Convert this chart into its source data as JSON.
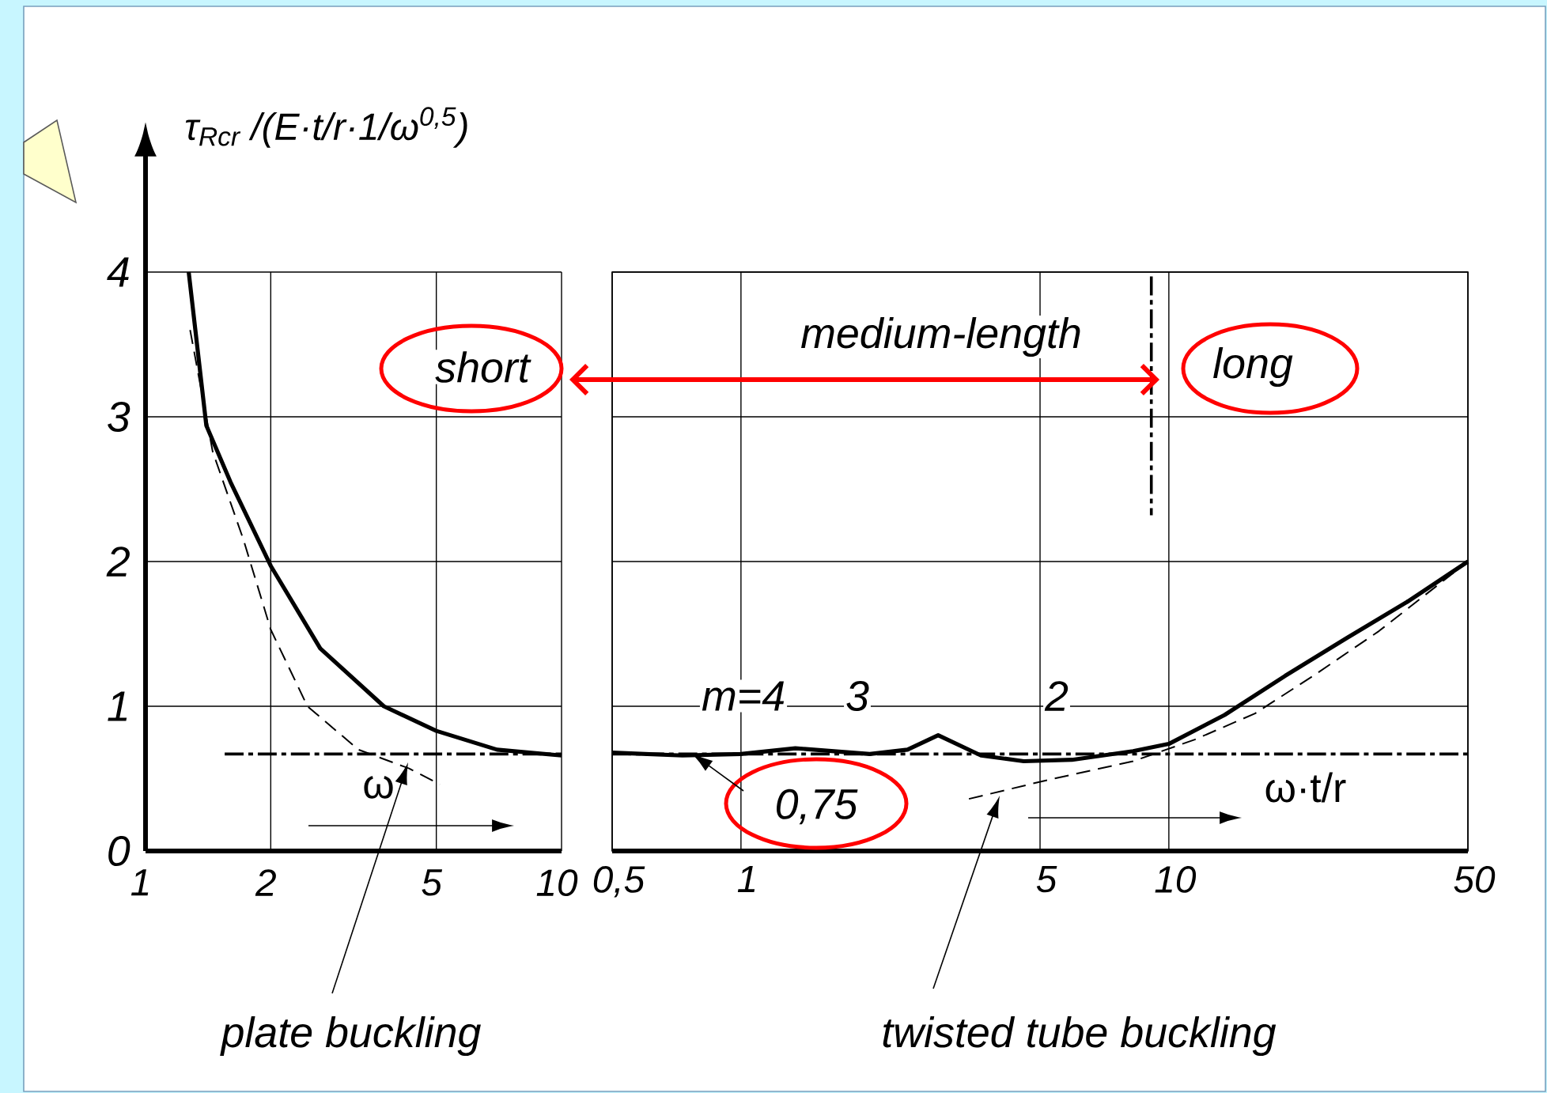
{
  "chart_data": [
    {
      "type": "line",
      "ylabel": "τ$_{Rcr}$ /(E·t/r·1/ω$^{0,5}$)",
      "xlabel": "ω",
      "log": "x",
      "xlim": [
        1,
        10
      ],
      "ylim": [
        0,
        4
      ],
      "xticks": [
        1,
        2,
        5,
        10
      ],
      "yticks": [
        0,
        1,
        2,
        3,
        4
      ],
      "grid": true,
      "annotations": [
        "short",
        "plate buckling"
      ],
      "series": [
        {
          "color": "#000000",
          "line_style": "solid",
          "x": [
            1.27,
            1.4,
            1.6,
            2,
            2.63,
            3.74,
            5,
            7,
            10
          ],
          "values": [
            4.0,
            2.94,
            2.55,
            1.97,
            1.4,
            1.0,
            0.83,
            0.7,
            0.66
          ]
        },
        {
          "color": "#000000",
          "line_style": "dashed",
          "x": [
            1.28,
            1.45,
            1.72,
            2,
            2.45,
            3.25,
            4.3,
            5.1
          ],
          "values": [
            3.6,
            2.76,
            2.15,
            1.53,
            1.0,
            0.7,
            0.57,
            0.46
          ]
        },
        {
          "color": "#000000",
          "line_style": "dashdot",
          "x": [
            1.55,
            10
          ],
          "values": [
            0.67,
            0.67
          ]
        }
      ]
    },
    {
      "type": "line",
      "xlabel": "ω·t/r",
      "log": "x",
      "xlim": [
        0.5,
        50
      ],
      "ylim": [
        0,
        4
      ],
      "xticks": [
        {
          "value": 0.5,
          "label": "0,5"
        },
        1,
        5,
        10,
        50
      ],
      "yticks": [
        0,
        1,
        2,
        3,
        4
      ],
      "tick_labels": "x",
      "grid": true,
      "annotations": [
        "medium-length",
        "long",
        "m=4",
        "3",
        "2",
        "0,75",
        "twisted tube buckling"
      ],
      "series": [
        {
          "color": "#000000",
          "line_style": "solid",
          "x": [
            0.5,
            0.73,
            1.0,
            1.34,
            2.0,
            2.45,
            2.89,
            3.64,
            4.58,
            5.94,
            8.25,
            10,
            13.5,
            18.7,
            26,
            36,
            50
          ],
          "values": [
            0.68,
            0.66,
            0.67,
            0.71,
            0.67,
            0.7,
            0.8,
            0.66,
            0.62,
            0.63,
            0.69,
            0.74,
            0.94,
            1.21,
            1.47,
            1.72,
            2.0
          ]
        },
        {
          "color": "#000000",
          "line_style": "dashed",
          "x": [
            3.41,
            5.2,
            8.25,
            11.5,
            15.9,
            22,
            31,
            50
          ],
          "values": [
            0.36,
            0.49,
            0.62,
            0.77,
            0.95,
            1.22,
            1.52,
            2.0
          ]
        },
        {
          "color": "#000000",
          "line_style": "dashdot",
          "x": [
            0.5,
            50
          ],
          "values": [
            0.67,
            0.67
          ]
        },
        {
          "color": "#000000",
          "line_style": "dashdot",
          "x": [
            9.1,
            9.1
          ],
          "values": [
            3.97,
            2.32
          ]
        }
      ]
    }
  ]
}
